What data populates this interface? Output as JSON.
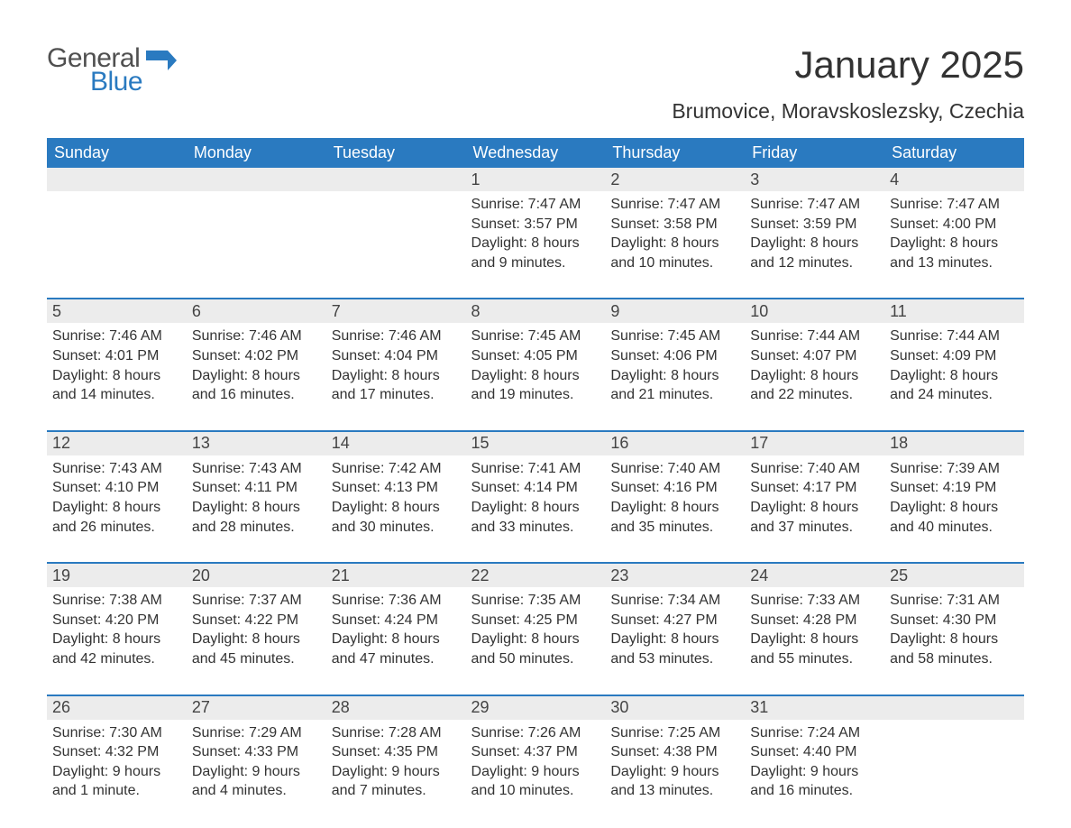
{
  "logo": {
    "word1": "General",
    "word2": "Blue",
    "flag_color": "#2a7ac0"
  },
  "title": "January 2025",
  "location": "Brumovice, Moravskoslezsky, Czechia",
  "colors": {
    "header_bg": "#2a7ac0",
    "header_text": "#ffffff",
    "daynum_bg": "#ececec",
    "text": "#333333",
    "rule": "#2a7ac0"
  },
  "typography": {
    "title_fontsize": 42,
    "location_fontsize": 23,
    "dow_fontsize": 18,
    "daynum_fontsize": 18,
    "detail_fontsize": 16
  },
  "days_of_week": [
    "Sunday",
    "Monday",
    "Tuesday",
    "Wednesday",
    "Thursday",
    "Friday",
    "Saturday"
  ],
  "weeks": [
    [
      null,
      null,
      null,
      {
        "n": "1",
        "sunrise": "7:47 AM",
        "sunset": "3:57 PM",
        "daylight": "8 hours and 9 minutes."
      },
      {
        "n": "2",
        "sunrise": "7:47 AM",
        "sunset": "3:58 PM",
        "daylight": "8 hours and 10 minutes."
      },
      {
        "n": "3",
        "sunrise": "7:47 AM",
        "sunset": "3:59 PM",
        "daylight": "8 hours and 12 minutes."
      },
      {
        "n": "4",
        "sunrise": "7:47 AM",
        "sunset": "4:00 PM",
        "daylight": "8 hours and 13 minutes."
      }
    ],
    [
      {
        "n": "5",
        "sunrise": "7:46 AM",
        "sunset": "4:01 PM",
        "daylight": "8 hours and 14 minutes."
      },
      {
        "n": "6",
        "sunrise": "7:46 AM",
        "sunset": "4:02 PM",
        "daylight": "8 hours and 16 minutes."
      },
      {
        "n": "7",
        "sunrise": "7:46 AM",
        "sunset": "4:04 PM",
        "daylight": "8 hours and 17 minutes."
      },
      {
        "n": "8",
        "sunrise": "7:45 AM",
        "sunset": "4:05 PM",
        "daylight": "8 hours and 19 minutes."
      },
      {
        "n": "9",
        "sunrise": "7:45 AM",
        "sunset": "4:06 PM",
        "daylight": "8 hours and 21 minutes."
      },
      {
        "n": "10",
        "sunrise": "7:44 AM",
        "sunset": "4:07 PM",
        "daylight": "8 hours and 22 minutes."
      },
      {
        "n": "11",
        "sunrise": "7:44 AM",
        "sunset": "4:09 PM",
        "daylight": "8 hours and 24 minutes."
      }
    ],
    [
      {
        "n": "12",
        "sunrise": "7:43 AM",
        "sunset": "4:10 PM",
        "daylight": "8 hours and 26 minutes."
      },
      {
        "n": "13",
        "sunrise": "7:43 AM",
        "sunset": "4:11 PM",
        "daylight": "8 hours and 28 minutes."
      },
      {
        "n": "14",
        "sunrise": "7:42 AM",
        "sunset": "4:13 PM",
        "daylight": "8 hours and 30 minutes."
      },
      {
        "n": "15",
        "sunrise": "7:41 AM",
        "sunset": "4:14 PM",
        "daylight": "8 hours and 33 minutes."
      },
      {
        "n": "16",
        "sunrise": "7:40 AM",
        "sunset": "4:16 PM",
        "daylight": "8 hours and 35 minutes."
      },
      {
        "n": "17",
        "sunrise": "7:40 AM",
        "sunset": "4:17 PM",
        "daylight": "8 hours and 37 minutes."
      },
      {
        "n": "18",
        "sunrise": "7:39 AM",
        "sunset": "4:19 PM",
        "daylight": "8 hours and 40 minutes."
      }
    ],
    [
      {
        "n": "19",
        "sunrise": "7:38 AM",
        "sunset": "4:20 PM",
        "daylight": "8 hours and 42 minutes."
      },
      {
        "n": "20",
        "sunrise": "7:37 AM",
        "sunset": "4:22 PM",
        "daylight": "8 hours and 45 minutes."
      },
      {
        "n": "21",
        "sunrise": "7:36 AM",
        "sunset": "4:24 PM",
        "daylight": "8 hours and 47 minutes."
      },
      {
        "n": "22",
        "sunrise": "7:35 AM",
        "sunset": "4:25 PM",
        "daylight": "8 hours and 50 minutes."
      },
      {
        "n": "23",
        "sunrise": "7:34 AM",
        "sunset": "4:27 PM",
        "daylight": "8 hours and 53 minutes."
      },
      {
        "n": "24",
        "sunrise": "7:33 AM",
        "sunset": "4:28 PM",
        "daylight": "8 hours and 55 minutes."
      },
      {
        "n": "25",
        "sunrise": "7:31 AM",
        "sunset": "4:30 PM",
        "daylight": "8 hours and 58 minutes."
      }
    ],
    [
      {
        "n": "26",
        "sunrise": "7:30 AM",
        "sunset": "4:32 PM",
        "daylight": "9 hours and 1 minute."
      },
      {
        "n": "27",
        "sunrise": "7:29 AM",
        "sunset": "4:33 PM",
        "daylight": "9 hours and 4 minutes."
      },
      {
        "n": "28",
        "sunrise": "7:28 AM",
        "sunset": "4:35 PM",
        "daylight": "9 hours and 7 minutes."
      },
      {
        "n": "29",
        "sunrise": "7:26 AM",
        "sunset": "4:37 PM",
        "daylight": "9 hours and 10 minutes."
      },
      {
        "n": "30",
        "sunrise": "7:25 AM",
        "sunset": "4:38 PM",
        "daylight": "9 hours and 13 minutes."
      },
      {
        "n": "31",
        "sunrise": "7:24 AM",
        "sunset": "4:40 PM",
        "daylight": "9 hours and 16 minutes."
      },
      null
    ]
  ],
  "labels": {
    "sunrise": "Sunrise:",
    "sunset": "Sunset:",
    "daylight": "Daylight:"
  }
}
